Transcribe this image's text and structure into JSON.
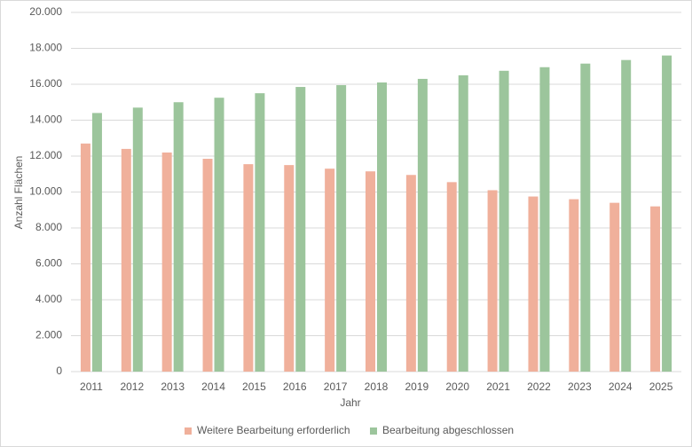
{
  "chart_data": {
    "type": "bar",
    "x_label": "Jahr",
    "y_label": "Anzahl Flächen",
    "categories": [
      "2011",
      "2012",
      "2013",
      "2014",
      "2015",
      "2016",
      "2017",
      "2018",
      "2019",
      "2020",
      "2021",
      "2022",
      "2023",
      "2024",
      "2025"
    ],
    "series": [
      {
        "name": "Weitere Bearbeitung erforderlich",
        "color": "#f0b09b",
        "values": [
          12700,
          12400,
          12200,
          11850,
          11550,
          11500,
          11300,
          11150,
          10950,
          10550,
          10100,
          9750,
          9600,
          9400,
          9200
        ]
      },
      {
        "name": "Bearbeitung abgeschlossen",
        "color": "#9cc59c",
        "values": [
          14400,
          14700,
          15000,
          15250,
          15500,
          15850,
          15950,
          16100,
          16300,
          16500,
          16750,
          16950,
          17150,
          17350,
          17600
        ]
      }
    ],
    "ylim": [
      0,
      20000
    ],
    "yticks": [
      0,
      {
        "value": 2000,
        "label": "2.000"
      },
      {
        "value": 4000,
        "label": "4.000"
      },
      {
        "value": 6000,
        "label": "6.000"
      },
      {
        "value": 8000,
        "label": "8.000"
      },
      {
        "value": 10000,
        "label": "10.000"
      },
      {
        "value": 12000,
        "label": "12.000"
      },
      {
        "value": 14000,
        "label": "14.000"
      },
      {
        "value": 16000,
        "label": "16.000"
      },
      {
        "value": 18000,
        "label": "18.000"
      },
      {
        "value": 20000,
        "label": "20.000"
      }
    ],
    "grid": true,
    "legend": "bottom"
  }
}
